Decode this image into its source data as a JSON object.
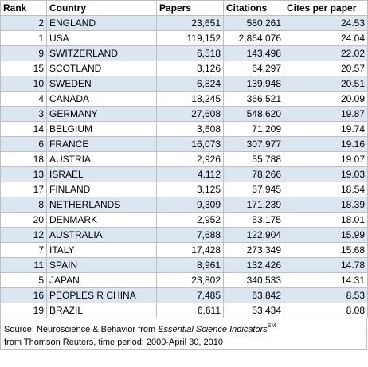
{
  "table": {
    "header": [
      "Rank",
      "Country",
      "Papers",
      "Citations",
      "Cites per paper"
    ],
    "rows": [
      [
        "2",
        "ENGLAND",
        "23,651",
        "580,261",
        "24.53"
      ],
      [
        "1",
        "USA",
        "119,152",
        "2,864,076",
        "24.04"
      ],
      [
        "9",
        "SWITZERLAND",
        "6,518",
        "143,498",
        "22.02"
      ],
      [
        "15",
        "SCOTLAND",
        "3,126",
        "64,297",
        "20.57"
      ],
      [
        "10",
        "SWEDEN",
        "6,824",
        "139,948",
        "20.51"
      ],
      [
        "4",
        "CANADA",
        "18,245",
        "366,521",
        "20.09"
      ],
      [
        "3",
        "GERMANY",
        "27,608",
        "548,620",
        "19.87"
      ],
      [
        "14",
        "BELGIUM",
        "3,608",
        "71,209",
        "19.74"
      ],
      [
        "6",
        "FRANCE",
        "16,073",
        "307,977",
        "19.16"
      ],
      [
        "18",
        "AUSTRIA",
        "2,926",
        "55,788",
        "19.07"
      ],
      [
        "13",
        "ISRAEL",
        "4,112",
        "78,266",
        "19.03"
      ],
      [
        "17",
        "FINLAND",
        "3,125",
        "57,945",
        "18.54"
      ],
      [
        "8",
        "NETHERLANDS",
        "9,309",
        "171,239",
        "18.39"
      ],
      [
        "20",
        "DENMARK",
        "2,952",
        "53,175",
        "18.01"
      ],
      [
        "12",
        "AUSTRALIA",
        "7,688",
        "122,904",
        "15.99"
      ],
      [
        "7",
        "ITALY",
        "17,428",
        "273,349",
        "15.68"
      ],
      [
        "11",
        "SPAIN",
        "8,961",
        "132,426",
        "14.78"
      ],
      [
        "5",
        "JAPAN",
        "23,802",
        "340,533",
        "14.31"
      ],
      [
        "16",
        "PEOPLES R CHINA",
        "7,485",
        "63,842",
        "8.53"
      ],
      [
        "19",
        "BRAZIL",
        "6,611",
        "53,434",
        "8.08"
      ]
    ]
  },
  "source": {
    "text": "Source: Neuroscience & Behavior from ",
    "italic": "Essential Science Indicators",
    "superscript": "SM"
  },
  "note": "from Thomson Reuters, time period: 2000-April 30, 2010"
}
